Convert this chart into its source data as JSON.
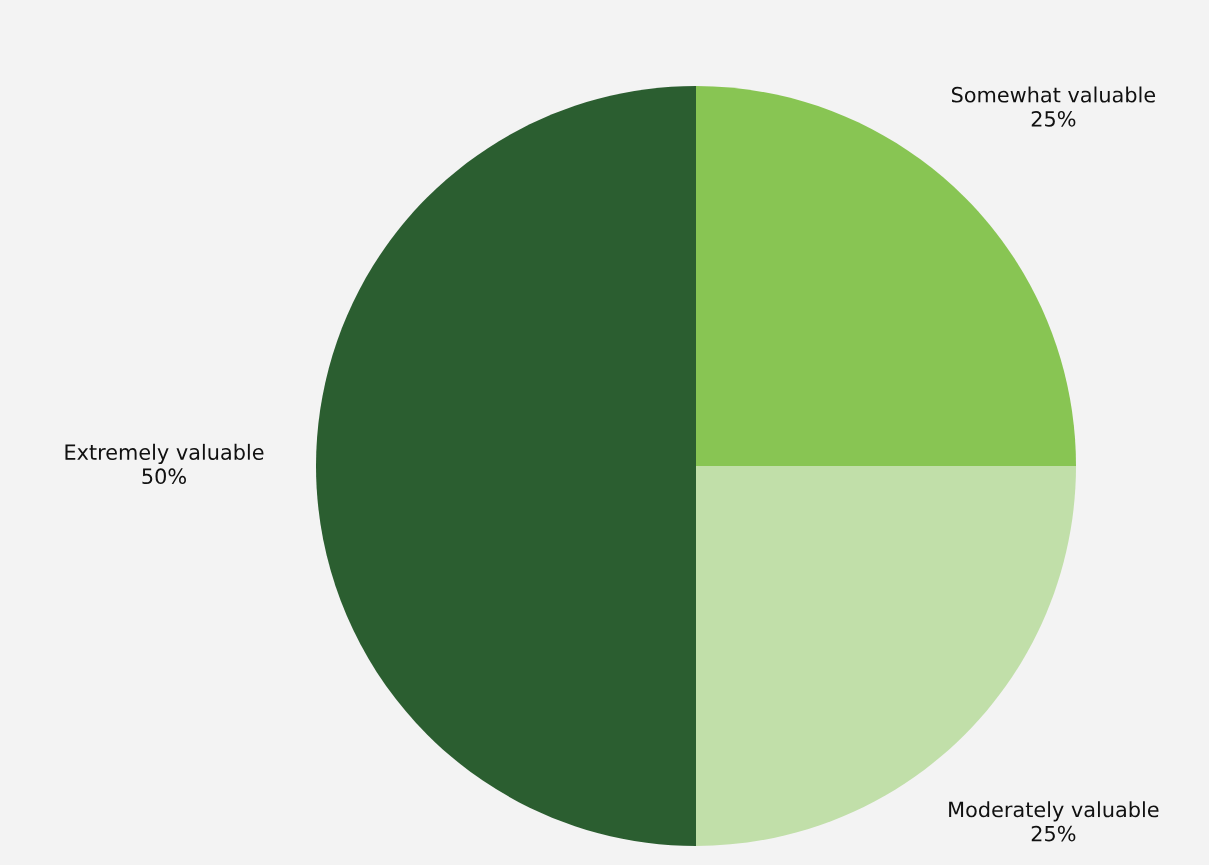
{
  "chart_data": {
    "type": "pie",
    "categories": [
      "Somewhat valuable",
      "Moderately valuable",
      "Extremely valuable"
    ],
    "values": [
      25,
      25,
      50
    ],
    "value_labels": [
      "25%",
      "25%",
      "50%"
    ],
    "colors": [
      "#88c553",
      "#c1dfa9",
      "#2b5e30"
    ],
    "legend": false
  }
}
